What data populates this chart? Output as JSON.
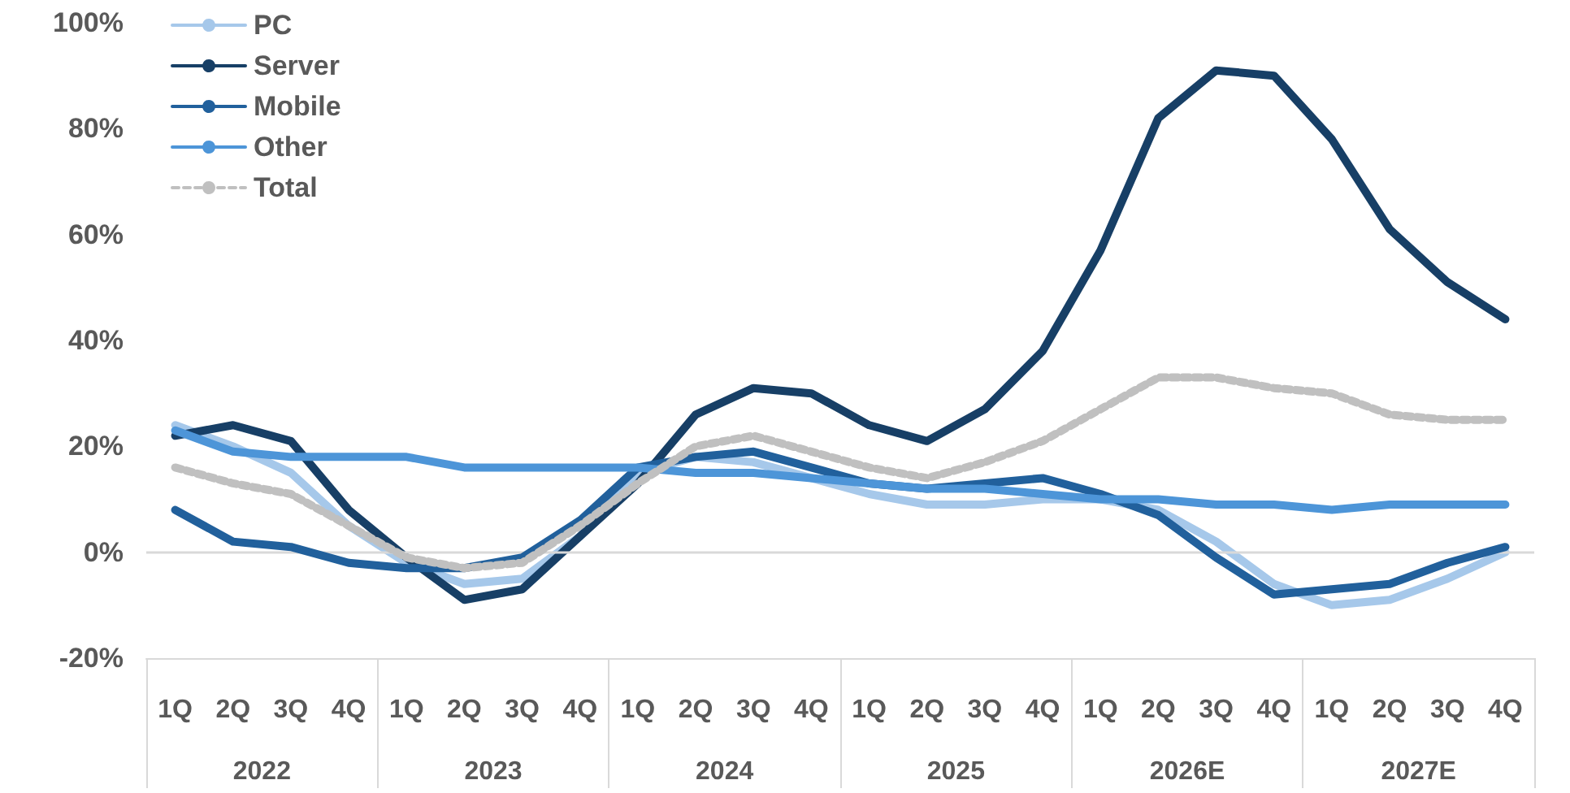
{
  "chart_data": {
    "type": "line",
    "categories": [
      "1Q",
      "2Q",
      "3Q",
      "4Q",
      "1Q",
      "2Q",
      "3Q",
      "4Q",
      "1Q",
      "2Q",
      "3Q",
      "4Q",
      "1Q",
      "2Q",
      "3Q",
      "4Q",
      "1Q",
      "2Q",
      "3Q",
      "4Q",
      "1Q",
      "2Q",
      "3Q",
      "4Q"
    ],
    "annotations": [
      "2022",
      "2023",
      "2024",
      "2025",
      "2026E",
      "2027E"
    ],
    "series": [
      {
        "name": "PC",
        "color": "#a6c8ea",
        "values": [
          24,
          20,
          15,
          5,
          -2,
          -6,
          -5,
          3,
          15,
          18,
          17,
          14,
          11,
          9,
          9,
          10,
          10,
          8,
          2,
          -6,
          -10,
          -9,
          -5,
          0
        ]
      },
      {
        "name": "Server",
        "color": "#173f66",
        "values": [
          22,
          24,
          21,
          8,
          -1,
          -9,
          -7,
          3,
          13,
          26,
          31,
          30,
          24,
          21,
          27,
          38,
          57,
          82,
          91,
          90,
          78,
          61,
          51,
          44
        ]
      },
      {
        "name": "Mobile",
        "color": "#21609c",
        "values": [
          8,
          2,
          1,
          -2,
          -3,
          -3,
          -1,
          6,
          16,
          18,
          19,
          16,
          13,
          12,
          13,
          14,
          11,
          7,
          -1,
          -8,
          -7,
          -6,
          -2,
          1
        ]
      },
      {
        "name": "Other",
        "color": "#4d95d8",
        "values": [
          23,
          19,
          18,
          18,
          18,
          16,
          16,
          16,
          16,
          15,
          15,
          14,
          13,
          12,
          12,
          11,
          10,
          10,
          9,
          9,
          8,
          9,
          9,
          9
        ]
      },
      {
        "name": "Total",
        "color": "#c0c0c0",
        "line_style": "dashed",
        "values": [
          16,
          13,
          11,
          5,
          -1,
          -3,
          -2,
          5,
          13,
          20,
          22,
          19,
          16,
          14,
          17,
          21,
          27,
          33,
          33,
          31,
          30,
          26,
          25,
          25
        ]
      }
    ],
    "ylim": [
      -20,
      100
    ],
    "yticks": [
      {
        "value": -20,
        "label": "-20%"
      },
      {
        "value": 0,
        "label": "0%"
      },
      {
        "value": 20,
        "label": "20%"
      },
      {
        "value": 40,
        "label": "40%"
      },
      {
        "value": 60,
        "label": "60%"
      },
      {
        "value": 80,
        "label": "80%"
      },
      {
        "value": 100,
        "label": "100%"
      }
    ],
    "ref_lines": [
      {
        "axis": "y",
        "value": 0,
        "label": null,
        "color": "#d9d9d9"
      }
    ],
    "grid": false,
    "legend": "top left",
    "marker": "none",
    "line_style": "solid"
  }
}
